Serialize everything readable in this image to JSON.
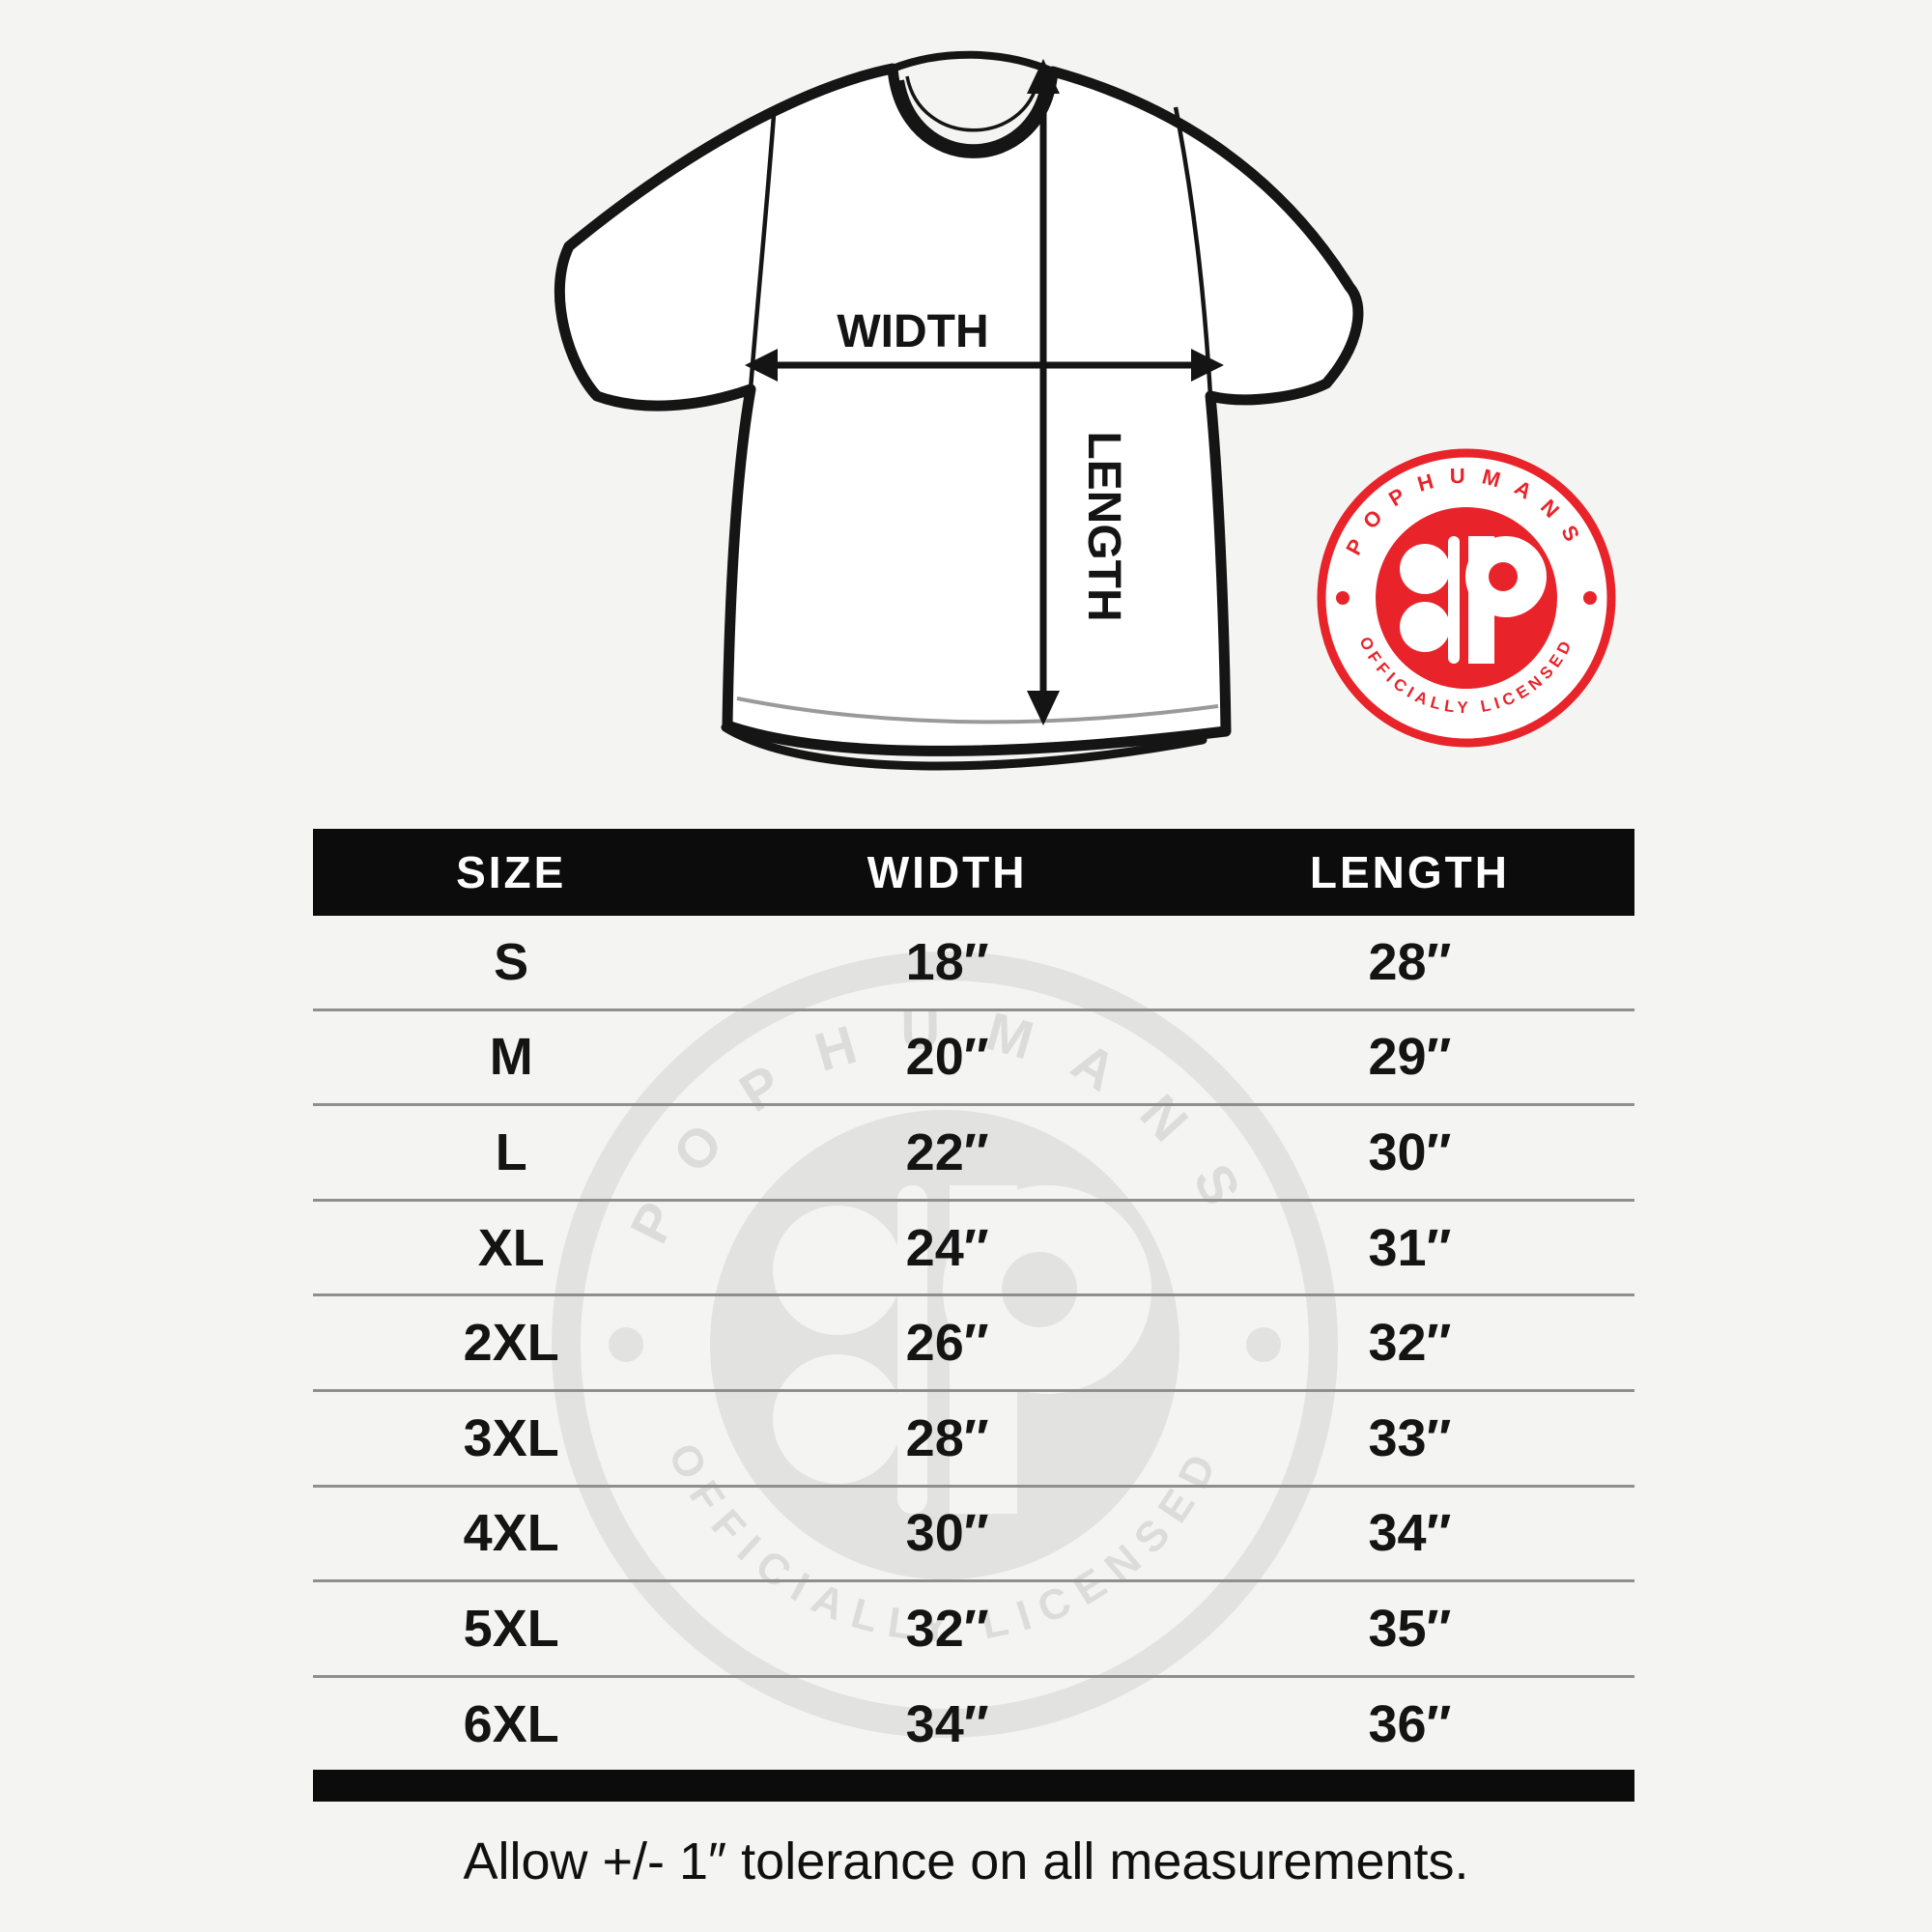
{
  "page": {
    "background": "#f4f4f2",
    "accent_red": "#e8242a",
    "bar_black": "#0c0c0c"
  },
  "diagram": {
    "width_label": "WIDTH",
    "length_label": "LENGTH"
  },
  "seal": {
    "brand": "POPHUMANS",
    "tagline": "OFFICIALLY LICENSED",
    "monogram": "P",
    "color": "#e8242a"
  },
  "watermark": {
    "brand": "POPHUMANS",
    "tagline": "OFFICIALLY LICENSED",
    "monogram": "P"
  },
  "size_table": {
    "headers": [
      "SIZE",
      "WIDTH",
      "LENGTH"
    ],
    "rows": [
      [
        "S",
        "18″",
        "28″"
      ],
      [
        "M",
        "20″",
        "29″"
      ],
      [
        "L",
        "22″",
        "30″"
      ],
      [
        "XL",
        "24″",
        "31″"
      ],
      [
        "2XL",
        "26″",
        "32″"
      ],
      [
        "3XL",
        "28″",
        "33″"
      ],
      [
        "4XL",
        "30″",
        "34″"
      ],
      [
        "5XL",
        "32″",
        "35″"
      ],
      [
        "6XL",
        "34″",
        "36″"
      ]
    ]
  },
  "note": "Allow +/- 1″ tolerance on all measurements."
}
